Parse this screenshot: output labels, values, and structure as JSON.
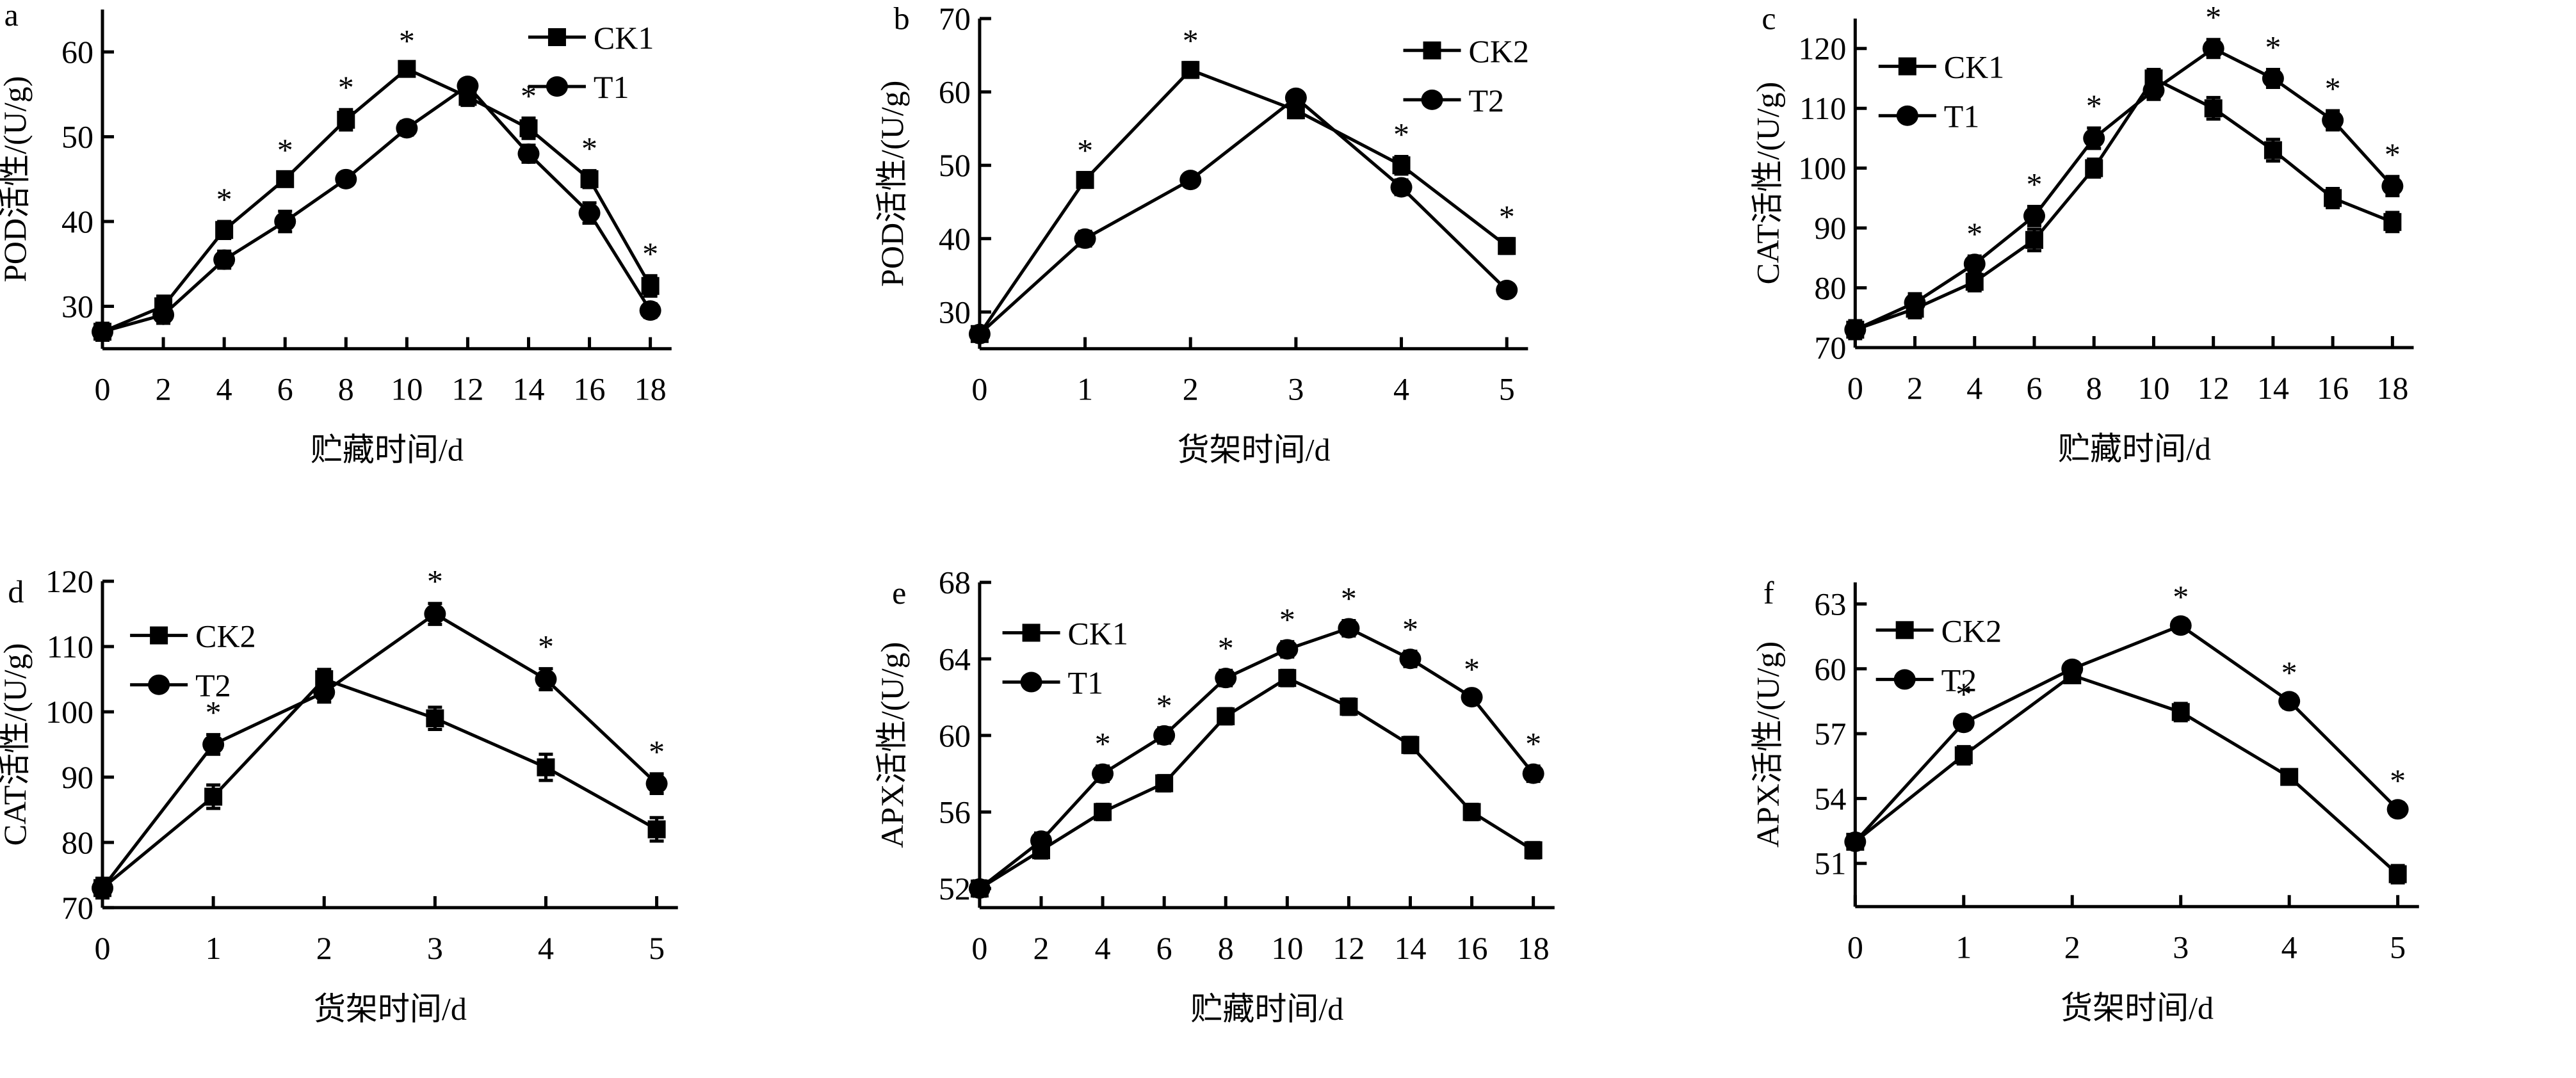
{
  "figure": {
    "panels": [
      "a",
      "b",
      "c",
      "d",
      "e",
      "f"
    ]
  },
  "chart_data": [
    {
      "id": "a",
      "type": "line",
      "panel_label": "a",
      "title": "",
      "xlabel": "贮藏时间/d",
      "ylabel": "POD活性/(U/g)",
      "x": [
        0,
        2,
        4,
        6,
        8,
        10,
        12,
        14,
        16,
        18
      ],
      "xticks": [
        0,
        2,
        4,
        6,
        8,
        10,
        12,
        14,
        16,
        18
      ],
      "xlim": [
        0,
        18
      ],
      "yticks": [
        30,
        40,
        50,
        60
      ],
      "ylim": [
        25,
        65
      ],
      "grid": false,
      "legend_position": "top-right",
      "series": [
        {
          "name": "CK1",
          "marker": "square",
          "values": [
            27,
            30,
            39,
            45,
            52,
            58,
            54.7,
            51,
            45,
            32.4
          ],
          "error": [
            1.0,
            1.2,
            1.0,
            0.8,
            1.2,
            0.7,
            1.0,
            1.2,
            1.0,
            1.2
          ]
        },
        {
          "name": "T1",
          "marker": "circle",
          "values": [
            27,
            29,
            35.5,
            40,
            45,
            51,
            56,
            48,
            41,
            29.5
          ],
          "error": [
            1.0,
            1.0,
            1.0,
            1.2,
            0.6,
            0.8,
            0.7,
            1.0,
            1.2,
            0.8
          ]
        }
      ],
      "significance": [
        4,
        6,
        8,
        10,
        14,
        16,
        18
      ],
      "significance_marker": "*"
    },
    {
      "id": "b",
      "type": "line",
      "panel_label": "b",
      "title": "",
      "xlabel": "货架时间/d",
      "ylabel": "POD活性/(U/g)",
      "x": [
        0,
        1,
        2,
        3,
        4,
        5
      ],
      "xticks": [
        0,
        1,
        2,
        3,
        4,
        5
      ],
      "xlim": [
        0,
        5
      ],
      "yticks": [
        30,
        40,
        50,
        60,
        70
      ],
      "ylim": [
        25,
        70
      ],
      "grid": false,
      "legend_position": "top-right",
      "series": [
        {
          "name": "CK2",
          "marker": "square",
          "values": [
            27,
            48,
            63,
            57.5,
            50,
            39
          ],
          "error": [
            0.8,
            1.0,
            1.0,
            1.0,
            1.2,
            1.0
          ]
        },
        {
          "name": "T2",
          "marker": "circle",
          "values": [
            27,
            40,
            48,
            59.2,
            47,
            33
          ],
          "error": [
            0.8,
            1.0,
            0.8,
            0.8,
            1.0,
            0.8
          ]
        }
      ],
      "significance": [
        1,
        2,
        4,
        5
      ],
      "significance_marker": "*"
    },
    {
      "id": "c",
      "type": "line",
      "panel_label": "c",
      "title": "",
      "xlabel": "贮藏时间/d",
      "ylabel": "CAT活性/(U/g)",
      "x": [
        0,
        2,
        4,
        6,
        8,
        10,
        12,
        14,
        16,
        18
      ],
      "xticks": [
        0,
        2,
        4,
        6,
        8,
        10,
        12,
        14,
        16,
        18
      ],
      "xlim": [
        0,
        18
      ],
      "yticks": [
        70,
        80,
        90,
        100,
        110,
        120
      ],
      "ylim": [
        70,
        125
      ],
      "grid": false,
      "legend_position": "top-left",
      "series": [
        {
          "name": "CK1",
          "marker": "square",
          "values": [
            73,
            76.5,
            81,
            88,
            100,
            115,
            110,
            103,
            95,
            91
          ],
          "error": [
            1.5,
            1.5,
            1.5,
            1.8,
            1.5,
            1.5,
            1.8,
            1.8,
            1.6,
            1.6
          ]
        },
        {
          "name": "T1",
          "marker": "circle",
          "values": [
            73,
            77.5,
            84,
            92,
            105,
            113,
            120,
            115,
            108,
            97
          ],
          "error": [
            1.0,
            1.5,
            1.3,
            1.6,
            1.7,
            1.5,
            1.5,
            1.5,
            1.6,
            1.6
          ]
        }
      ],
      "significance": [
        4,
        6,
        8,
        12,
        14,
        16,
        18
      ],
      "significance_marker": "*"
    },
    {
      "id": "d",
      "type": "line",
      "panel_label": "d",
      "title": "",
      "xlabel": "货架时间/d",
      "ylabel": "CAT活性/(U/g)",
      "x": [
        0,
        1,
        2,
        3,
        4,
        5
      ],
      "xticks": [
        0,
        1,
        2,
        3,
        4,
        5
      ],
      "xlim": [
        0,
        5
      ],
      "yticks": [
        70,
        80,
        90,
        100,
        110,
        120
      ],
      "ylim": [
        70,
        120
      ],
      "grid": false,
      "legend_position": "top-left",
      "series": [
        {
          "name": "CK2",
          "marker": "square",
          "values": [
            73,
            87,
            105,
            99,
            91.5,
            82
          ],
          "error": [
            1.5,
            1.8,
            1.5,
            1.7,
            2.0,
            1.8
          ]
        },
        {
          "name": "T2",
          "marker": "circle",
          "values": [
            73,
            95,
            103,
            115,
            105,
            89
          ],
          "error": [
            1.5,
            1.5,
            1.5,
            1.6,
            1.6,
            1.5
          ]
        }
      ],
      "significance": [
        1,
        3,
        4,
        5
      ],
      "significance_marker": "*"
    },
    {
      "id": "e",
      "type": "line",
      "panel_label": "e",
      "title": "",
      "xlabel": "贮藏时间/d",
      "ylabel": "APX活性/(U/g)",
      "x": [
        0,
        2,
        4,
        6,
        8,
        10,
        12,
        14,
        16,
        18
      ],
      "xticks": [
        0,
        2,
        4,
        6,
        8,
        10,
        12,
        14,
        16,
        18
      ],
      "xlim": [
        0,
        18
      ],
      "yticks": [
        52,
        56,
        60,
        64,
        68
      ],
      "ylim": [
        51,
        68
      ],
      "grid": false,
      "legend_position": "top-left",
      "series": [
        {
          "name": "CK1",
          "marker": "square",
          "values": [
            52,
            54,
            56,
            57.5,
            61,
            63,
            61.5,
            59.5,
            56,
            54
          ],
          "error": [
            0.4,
            0.4,
            0.4,
            0.4,
            0.4,
            0.4,
            0.4,
            0.4,
            0.4,
            0.4
          ]
        },
        {
          "name": "T1",
          "marker": "circle",
          "values": [
            52,
            54.5,
            58,
            60,
            63,
            64.5,
            65.6,
            64,
            62,
            58
          ],
          "error": [
            0.4,
            0.4,
            0.4,
            0.4,
            0.4,
            0.4,
            0.4,
            0.4,
            0.3,
            0.4
          ]
        }
      ],
      "significance": [
        4,
        6,
        8,
        10,
        12,
        14,
        16,
        18
      ],
      "significance_marker": "*"
    },
    {
      "id": "f",
      "type": "line",
      "panel_label": "f",
      "title": "",
      "xlabel": "货架时间/d",
      "ylabel": "APX活性/(U/g)",
      "x": [
        0,
        1,
        2,
        3,
        4,
        5
      ],
      "xticks": [
        0,
        1,
        2,
        3,
        4,
        5
      ],
      "xlim": [
        0,
        5
      ],
      "yticks": [
        51,
        54,
        57,
        60,
        63
      ],
      "ylim": [
        49,
        64
      ],
      "grid": false,
      "legend_position": "top-left",
      "series": [
        {
          "name": "CK2",
          "marker": "square",
          "values": [
            52,
            56,
            59.7,
            58,
            55,
            50.5
          ],
          "error": [
            0.3,
            0.4,
            0.3,
            0.4,
            0.3,
            0.4
          ]
        },
        {
          "name": "T2",
          "marker": "circle",
          "values": [
            52,
            57.5,
            60,
            62,
            58.5,
            53.5
          ],
          "error": [
            0.3,
            0.3,
            0.3,
            0.3,
            0.3,
            0.3
          ]
        }
      ],
      "significance": [
        1,
        3,
        4,
        5
      ],
      "significance_marker": "*"
    }
  ]
}
